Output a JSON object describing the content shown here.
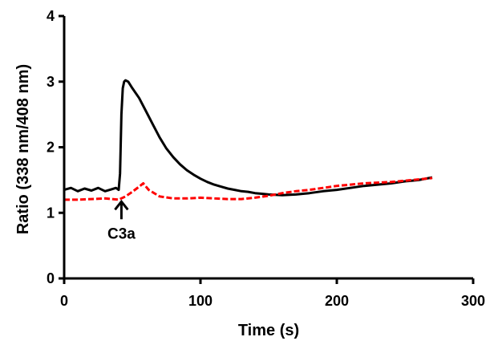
{
  "chart_data": {
    "type": "line",
    "xlabel": "Time (s)",
    "ylabel": "Ratio (338 nm/408 nm)",
    "xlim": [
      0,
      300
    ],
    "ylim": [
      0,
      4
    ],
    "x_ticks": [
      0,
      100,
      200,
      300
    ],
    "y_ticks": [
      0,
      1,
      2,
      3,
      4
    ],
    "grid": false,
    "legend": "none",
    "annotations": [
      {
        "text": "C3a",
        "x": 42,
        "y": 1.22,
        "arrow": "up"
      }
    ],
    "series": [
      {
        "color": "#000000",
        "line_style": "solid",
        "x": [
          0,
          5,
          10,
          15,
          20,
          25,
          30,
          35,
          38,
          40,
          41,
          42,
          43,
          44,
          45,
          47,
          50,
          55,
          60,
          65,
          70,
          75,
          80,
          85,
          90,
          95,
          100,
          105,
          110,
          115,
          120,
          125,
          130,
          135,
          140,
          145,
          150,
          160,
          170,
          180,
          190,
          200,
          210,
          220,
          230,
          240,
          250,
          260,
          270
        ],
        "y": [
          1.35,
          1.38,
          1.33,
          1.37,
          1.34,
          1.38,
          1.33,
          1.36,
          1.38,
          1.35,
          1.6,
          2.5,
          2.9,
          3.0,
          3.02,
          3.0,
          2.9,
          2.75,
          2.55,
          2.35,
          2.15,
          1.98,
          1.85,
          1.74,
          1.65,
          1.58,
          1.52,
          1.47,
          1.43,
          1.4,
          1.37,
          1.35,
          1.33,
          1.32,
          1.3,
          1.29,
          1.28,
          1.27,
          1.28,
          1.3,
          1.33,
          1.35,
          1.38,
          1.41,
          1.43,
          1.45,
          1.48,
          1.5,
          1.54
        ]
      },
      {
        "color": "#ff0000",
        "line_style": "dashed",
        "x": [
          0,
          10,
          20,
          30,
          40,
          45,
          50,
          55,
          58,
          62,
          70,
          80,
          90,
          100,
          110,
          120,
          130,
          140,
          150,
          160,
          170,
          180,
          190,
          200,
          210,
          220,
          230,
          240,
          250,
          260,
          270
        ],
        "y": [
          1.2,
          1.2,
          1.21,
          1.22,
          1.2,
          1.25,
          1.32,
          1.4,
          1.45,
          1.35,
          1.25,
          1.22,
          1.22,
          1.23,
          1.22,
          1.21,
          1.21,
          1.23,
          1.26,
          1.3,
          1.33,
          1.35,
          1.38,
          1.41,
          1.43,
          1.45,
          1.46,
          1.47,
          1.49,
          1.51,
          1.53
        ]
      }
    ]
  }
}
